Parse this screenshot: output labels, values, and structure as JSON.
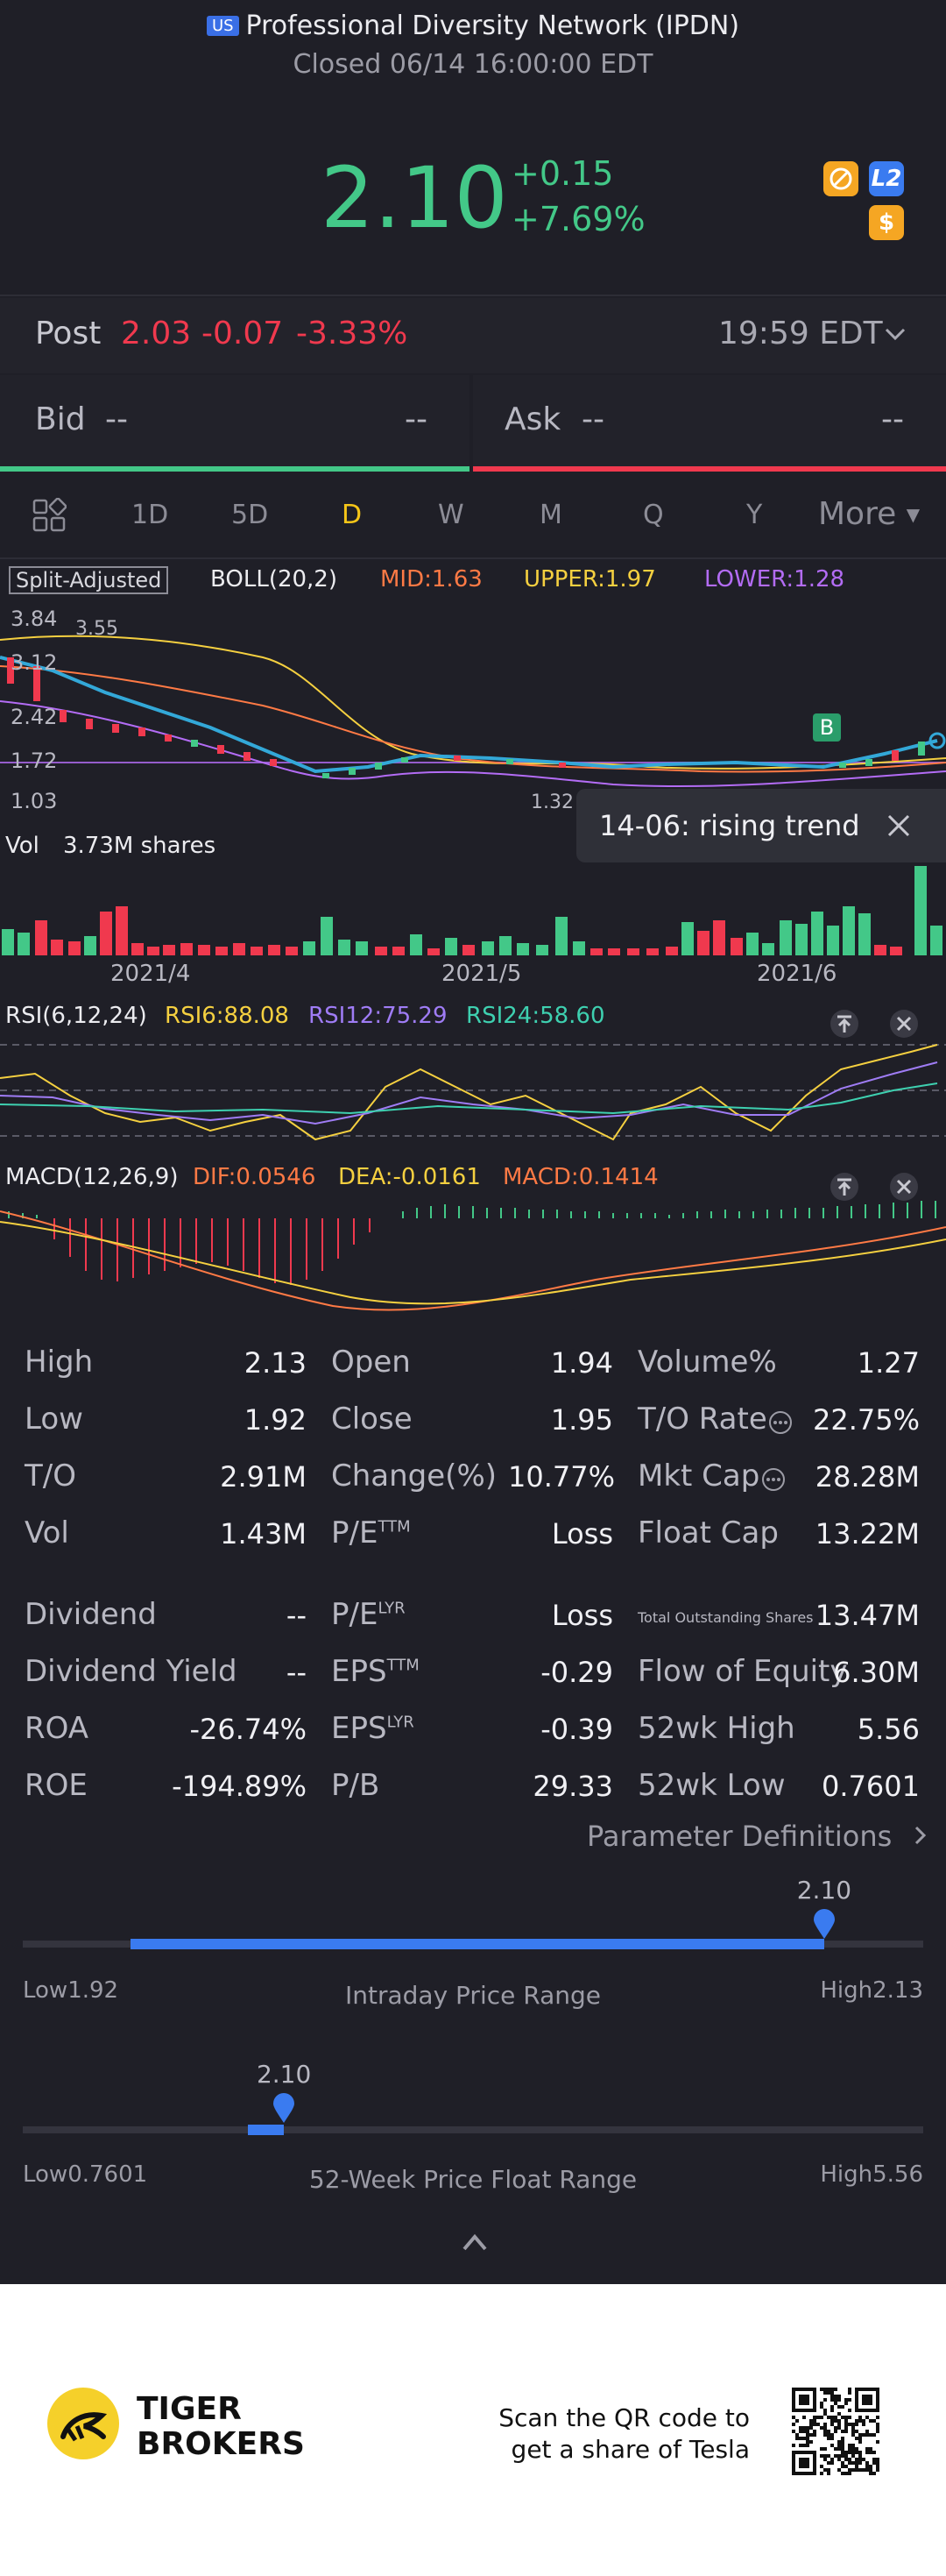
{
  "header": {
    "flag": "US",
    "title": "Professional Diversity Network (IPDN)",
    "status": "Closed 06/14 16:00:00 EDT"
  },
  "quote": {
    "price": "2.10",
    "change": "+0.15",
    "change_pct": "+7.69%"
  },
  "post": {
    "label": "Post",
    "price": "2.03",
    "change": "-0.07",
    "change_pct": "-3.33%",
    "time": "19:59 EDT"
  },
  "bid": {
    "label": "Bid",
    "price": "--",
    "size": "--"
  },
  "ask": {
    "label": "Ask",
    "price": "--",
    "size": "--"
  },
  "tabs": [
    "1D",
    "5D",
    "D",
    "W",
    "M",
    "Q",
    "Y",
    "More"
  ],
  "active_tab": "D",
  "chart": {
    "adjusted": "Split-Adjusted",
    "boll": {
      "label": "BOLL(20,2)",
      "mid": "MID:1.63",
      "upper": "UPPER:1.97",
      "lower": "LOWER:1.28"
    },
    "price_ticks": [
      "3.84",
      "3.55",
      "3.12",
      "2.42",
      "1.72",
      "1.03",
      "1.32"
    ],
    "signal_marker": "B",
    "tooltip": "14-06: rising trend",
    "vol_label": "Vol",
    "vol_value": "3.73M shares",
    "x_ticks": [
      "2021/4",
      "2021/5",
      "2021/6"
    ],
    "rsi": {
      "label": "RSI(6,12,24)",
      "rsi6": "RSI6:88.08",
      "rsi12": "RSI12:75.29",
      "rsi24": "RSI24:58.60"
    },
    "macd": {
      "label": "MACD(12,26,9)",
      "dif": "DIF:0.0546",
      "dea": "DEA:-0.0161",
      "macd": "MACD:0.1414"
    },
    "colors": {
      "green": "#43c888",
      "red": "#f0394e",
      "mid": "#ff7a45",
      "upper": "#f5d040",
      "lower": "#b36cf5",
      "trend": "#33a8d8"
    }
  },
  "stats": [
    [
      {
        "label": "High",
        "value": "2.13"
      },
      {
        "label": "Open",
        "value": "1.94"
      },
      {
        "label": "Volume%",
        "value": "1.27"
      }
    ],
    [
      {
        "label": "Low",
        "value": "1.92"
      },
      {
        "label": "Close",
        "value": "1.95"
      },
      {
        "label": "T/O Rate",
        "value": "22.75%"
      }
    ],
    [
      {
        "label": "T/O",
        "value": "2.91M"
      },
      {
        "label": "Change(%)",
        "value": "10.77%"
      },
      {
        "label": "Mkt Cap",
        "value": "28.28M"
      }
    ],
    [
      {
        "label": "Vol",
        "value": "1.43M"
      },
      {
        "label": "P/E",
        "sup": "TTM",
        "value": "Loss"
      },
      {
        "label": "Float Cap",
        "value": "13.22M"
      }
    ],
    [
      {
        "label": "Dividend",
        "value": "--"
      },
      {
        "label": "P/E",
        "sup": "LYR",
        "value": "Loss"
      },
      {
        "label": "Total Outstanding Shares",
        "value": "13.47M"
      }
    ],
    [
      {
        "label": "Dividend Yield",
        "value": "--"
      },
      {
        "label": "EPS",
        "sup": "TTM",
        "value": "-0.29"
      },
      {
        "label": "Flow of Equity",
        "value": "6.30M"
      }
    ],
    [
      {
        "label": "ROA",
        "value": "-26.74%"
      },
      {
        "label": "EPS",
        "sup": "LYR",
        "value": "-0.39"
      },
      {
        "label": "52wk High",
        "value": "5.56"
      }
    ],
    [
      {
        "label": "ROE",
        "value": "-194.89%"
      },
      {
        "label": "P/B",
        "value": "29.33"
      },
      {
        "label": "52wk Low",
        "value": "0.7601"
      }
    ]
  ],
  "param_link": "Parameter Definitions",
  "intraday": {
    "marker": "2.10",
    "low_label": "Low",
    "low": "1.92",
    "high_label": "High",
    "high": "2.13",
    "title": "Intraday Price Range",
    "fill_start": 0.12,
    "fill_end": 0.89
  },
  "week52": {
    "marker": "2.10",
    "low_label": "Low",
    "low": "0.7601",
    "high_label": "High",
    "high": "5.56",
    "title": "52-Week Price Float Range",
    "fill_start": 0.25,
    "fill_end": 0.29
  },
  "footer": {
    "brand_line1": "TIGER",
    "brand_line2": "BROKERS",
    "promo_line1": "Scan the QR code to",
    "promo_line2": "get a share of Tesla"
  }
}
